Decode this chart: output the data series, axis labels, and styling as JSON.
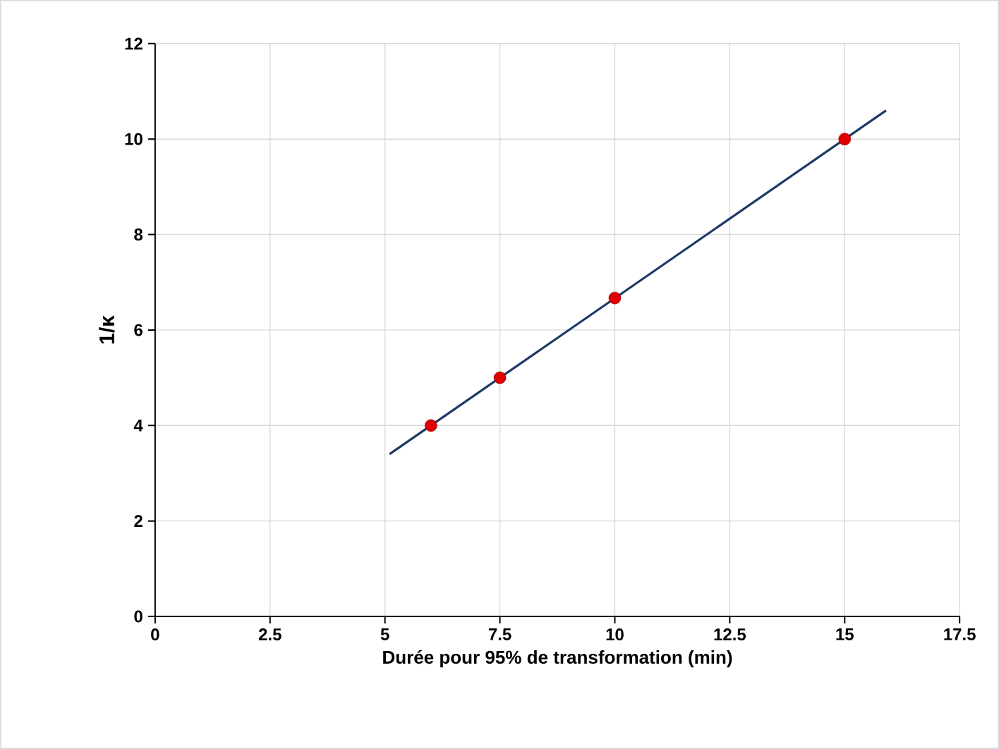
{
  "chart_data": {
    "type": "scatter",
    "xlabel": "Durée pour 95% de transformation (min)",
    "ylabel": "1/κ",
    "xlim": [
      0,
      17.5
    ],
    "xticks": [
      0,
      2.5,
      5,
      7.5,
      10,
      12.5,
      15,
      17.5
    ],
    "ylim": [
      0,
      12
    ],
    "yticks": [
      0,
      2,
      4,
      6,
      8,
      10,
      12
    ],
    "grid": true,
    "series": [
      {
        "type": "line",
        "color": "#1f3864",
        "x": [
          5.1,
          15.9
        ],
        "values": [
          3.4,
          10.6
        ],
        "marker": "none",
        "line_style": "solid"
      },
      {
        "color": "#e00000",
        "x": [
          6,
          7.5,
          10,
          15
        ],
        "values": [
          4,
          5,
          6.67,
          10
        ],
        "marker": "circle"
      }
    ]
  }
}
